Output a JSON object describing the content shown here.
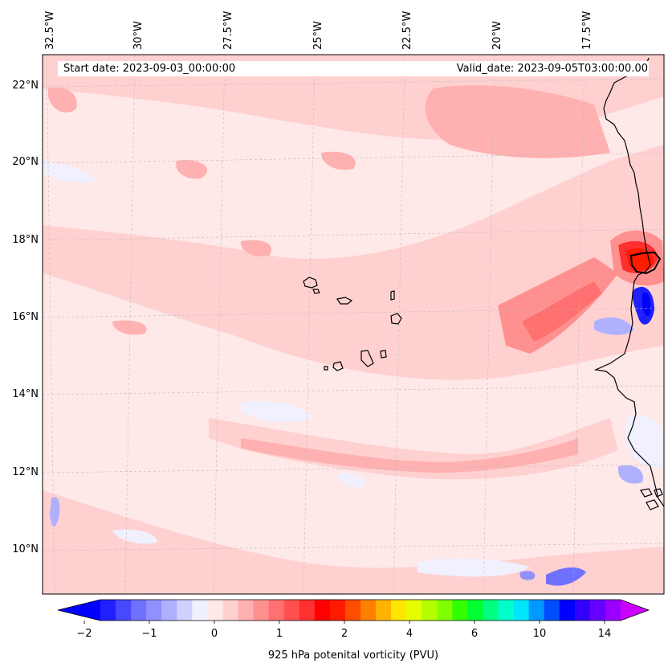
{
  "header": {
    "start_label": "Start date: 2023-09-03_00:00:00",
    "valid_label": "Valid_date: 2023-09-05T03:00:00.00"
  },
  "lon_labels": [
    "32.5°W",
    "30°W",
    "27.5°W",
    "25°W",
    "22.5°W",
    "20°W",
    "17.5°W"
  ],
  "lat_labels": [
    "22°N",
    "20°N",
    "18°N",
    "16°N",
    "14°N",
    "12°N",
    "10°N"
  ],
  "colorbar": {
    "title": "925 hPa potenital vorticity (PVU)",
    "tick_labels": [
      "−2",
      "−1",
      "0",
      "1",
      "2",
      "4",
      "6",
      "10",
      "14"
    ],
    "colors": [
      "#0000ff",
      "#2020ff",
      "#4848ff",
      "#7070ff",
      "#9090ff",
      "#b0b0ff",
      "#d0d0ff",
      "#f0f0ff",
      "#ffe8e8",
      "#ffd0d0",
      "#ffb0b0",
      "#ff9090",
      "#ff7070",
      "#ff5050",
      "#ff3030",
      "#ff0000",
      "#ff1a00",
      "#ff4d00",
      "#ff8000",
      "#ffb300",
      "#ffe600",
      "#e6ff00",
      "#b3ff00",
      "#80ff00",
      "#33ff00",
      "#00ff33",
      "#00ff80",
      "#00ffcc",
      "#00e6ff",
      "#0099ff",
      "#004dff",
      "#0000ff",
      "#3300ff",
      "#6600ff",
      "#9900ff",
      "#cc00ff"
    ]
  }
}
